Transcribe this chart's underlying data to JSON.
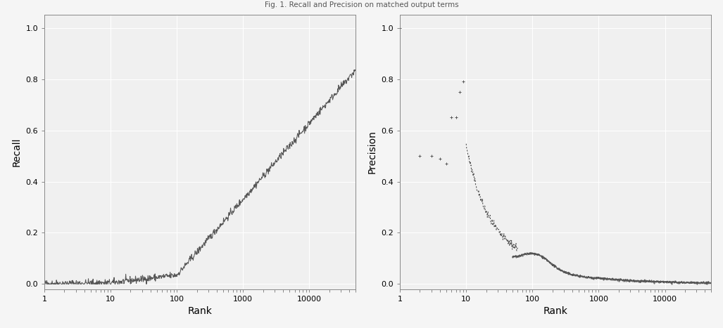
{
  "title": "Fig. 1. Recall and Precision on matched output terms",
  "left_ylabel": "Recall",
  "right_ylabel": "Precision",
  "xlabel": "Rank",
  "xlim_left": [
    1,
    50000
  ],
  "xlim_right": [
    1,
    50000
  ],
  "ylim_left": [
    -0.02,
    1.05
  ],
  "ylim_right": [
    -0.02,
    1.05
  ],
  "yticks": [
    0.0,
    0.2,
    0.4,
    0.6,
    0.8,
    1.0
  ],
  "xticks": [
    1,
    10,
    100,
    1000,
    10000
  ],
  "xticklabels": [
    "1",
    "10",
    "100",
    "1000",
    "10000"
  ],
  "line_color": "#555555",
  "background_color": "#f0f0f0",
  "grid_color": "#ffffff",
  "panel_color": "#f0f0f0"
}
